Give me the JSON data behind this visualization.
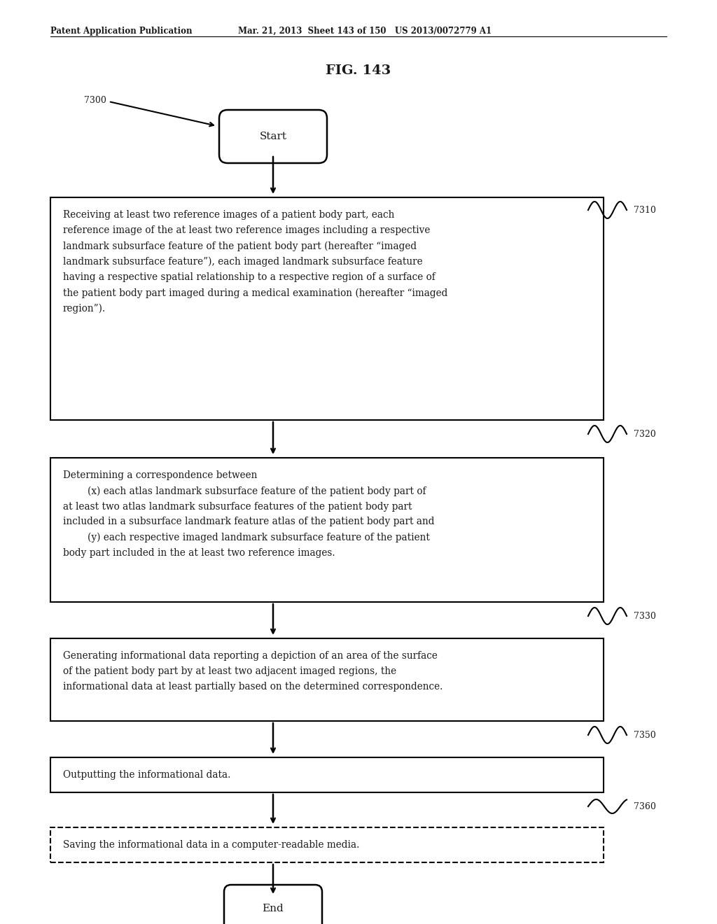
{
  "title": "FIG. 143",
  "header_left": "Patent Application Publication",
  "header_right": "Mar. 21, 2013  Sheet 143 of 150   US 2013/0072779 A1",
  "fig_label": "7300",
  "start_label": "Start",
  "end_label": "End",
  "box1_text": "Receiving at least two reference images of a patient body part, each\nreference image of the at least two reference images including a respective\nlandmark subsurface feature of the patient body part (hereafter “imaged\nlandmark subsurface feature”), each imaged landmark subsurface feature\nhaving a respective spatial relationship to a respective region of a surface of\nthe patient body part imaged during a medical examination (hereafter “imaged\nregion”).",
  "box1_label": "7310",
  "box2_text": "Determining a correspondence between\n        (x) each atlas landmark subsurface feature of the patient body part of\nat least two atlas landmark subsurface features of the patient body part\nincluded in a subsurface landmark feature atlas of the patient body part and\n        (y) each respective imaged landmark subsurface feature of the patient\nbody part included in the at least two reference images.",
  "box2_label": "7320",
  "box3_text": "Generating informational data reporting a depiction of an area of the surface\nof the patient body part by at least two adjacent imaged regions, the\ninformational data at least partially based on the determined correspondence.",
  "box3_label": "7330",
  "box4_text": "Outputting the informational data.",
  "box4_label": "7350",
  "box5_text": "Saving the informational data in a computer-readable media.",
  "box5_label": "7360",
  "background": "#ffffff",
  "text_color": "#1a1a1a"
}
